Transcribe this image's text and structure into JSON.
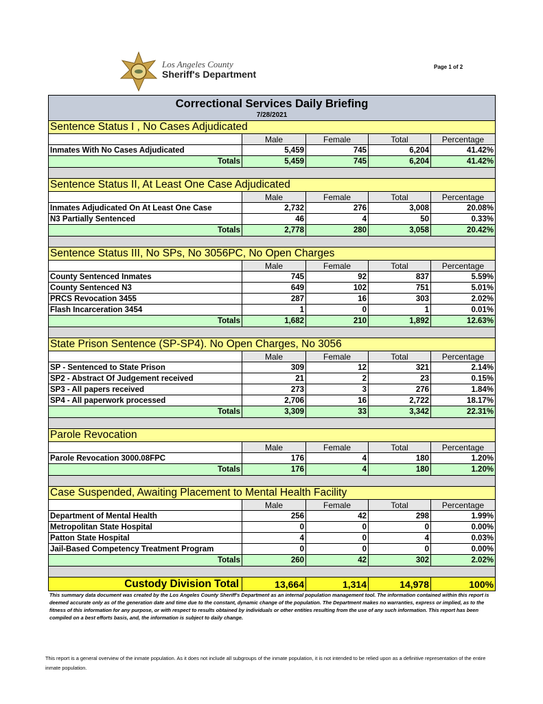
{
  "header": {
    "agency_line1": "Los Angeles County",
    "agency_line2": "Sheriff's Department",
    "page": "Page 1 of 2",
    "title": "Correctional Services Daily Briefing",
    "date": "7/28/2021"
  },
  "columns": [
    "Male",
    "Female",
    "Total",
    "Percentage"
  ],
  "sections": [
    {
      "title": "Sentence Status I , No Cases Adjudicated",
      "rows": [
        [
          "Inmates With No Cases Adjudicated",
          "5,459",
          "745",
          "6,204",
          "41.42%"
        ]
      ],
      "totals": [
        "Totals",
        "5,459",
        "745",
        "6,204",
        "41.42%"
      ]
    },
    {
      "title": "Sentence Status II, At Least One Case Adjudicated",
      "rows": [
        [
          "Inmates Adjudicated On At Least One Case",
          "2,732",
          "276",
          "3,008",
          "20.08%"
        ],
        [
          "N3 Partially Sentenced",
          "46",
          "4",
          "50",
          "0.33%"
        ]
      ],
      "totals": [
        "Totals",
        "2,778",
        "280",
        "3,058",
        "20.42%"
      ]
    },
    {
      "title": "Sentence Status III, No SPs, No 3056PC, No Open Charges",
      "rows": [
        [
          "County Sentenced Inmates",
          "745",
          "92",
          "837",
          "5.59%"
        ],
        [
          "County Sentenced N3",
          "649",
          "102",
          "751",
          "5.01%"
        ],
        [
          "PRCS Revocation 3455",
          "287",
          "16",
          "303",
          "2.02%"
        ],
        [
          "Flash Incarceration 3454",
          "1",
          "0",
          "1",
          "0.01%"
        ]
      ],
      "totals": [
        "Totals",
        "1,682",
        "210",
        "1,892",
        "12.63%"
      ]
    },
    {
      "title": "State Prison Sentence (SP-SP4). No Open Charges, No 3056",
      "rows": [
        [
          "SP - Sentenced to State Prison",
          "309",
          "12",
          "321",
          "2.14%"
        ],
        [
          "SP2 - Abstract Of Judgement received",
          "21",
          "2",
          "23",
          "0.15%"
        ],
        [
          "SP3 - All papers received",
          "273",
          "3",
          "276",
          "1.84%"
        ],
        [
          "SP4 - All paperwork processed",
          "2,706",
          "16",
          "2,722",
          "18.17%"
        ]
      ],
      "totals": [
        "Totals",
        "3,309",
        "33",
        "3,342",
        "22.31%"
      ]
    },
    {
      "title": "Parole Revocation",
      "rows": [
        [
          "Parole Revocation 3000.08FPC",
          "176",
          "4",
          "180",
          "1.20%"
        ]
      ],
      "totals": [
        "Totals",
        "176",
        "4",
        "180",
        "1.20%"
      ]
    },
    {
      "title": "Case Suspended, Awaiting Placement to Mental Health Facility",
      "rows": [
        [
          "Department of Mental Health",
          "256",
          "42",
          "298",
          "1.99%"
        ],
        [
          "Metropolitan State Hospital",
          "0",
          "0",
          "0",
          "0.00%"
        ],
        [
          "Patton State Hospital",
          "4",
          "0",
          "4",
          "0.03%"
        ],
        [
          "Jail-Based Competency Treatment Program",
          "0",
          "0",
          "0",
          "0.00%"
        ]
      ],
      "totals": [
        "Totals",
        "260",
        "42",
        "302",
        "2.02%"
      ]
    }
  ],
  "grand_total": [
    "Custody Division Total",
    "13,664",
    "1,314",
    "14,978",
    "100%"
  ],
  "footnotes": [
    "This summary data document was created by the Los Angeles County Sheriff's Department as an internal population management tool.  The information contained within this report is deemed accurate only as of the generation date and time due to the constant, dynamic change of the population.  The Department makes no warranties, express or implied, as to the fitness of this information for any purpose, or with respect to results obtained by individuals or other entities resulting from the use of any such information.  This report has been compiled on a best efforts basis, and, the information is subject to daily change.",
    "This report is a general overview of the inmate population.  As it does not include all subgroups of the inmate population, it is not intended to be relied upon as a definitive representation of the entire inmate population."
  ]
}
